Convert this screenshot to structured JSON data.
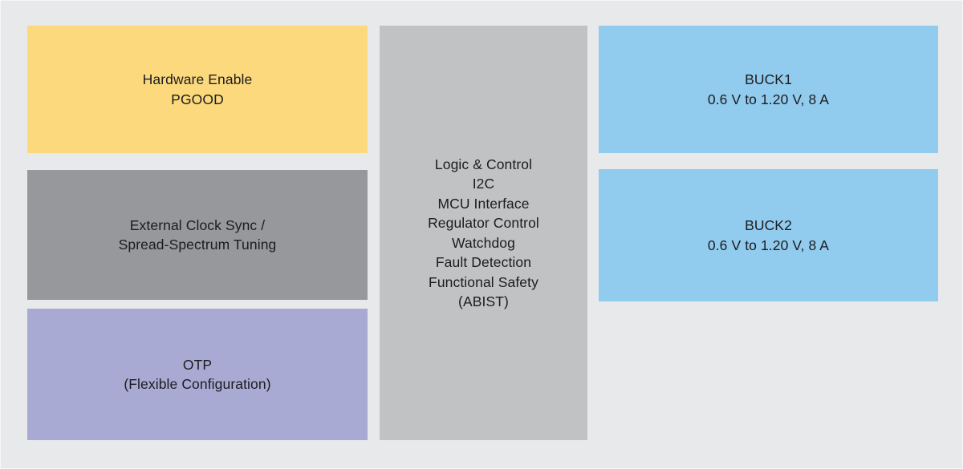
{
  "page": {
    "background_color": "#e8e9eb",
    "text_color": "#1c1c1e"
  },
  "blocks": {
    "hardware_enable": {
      "color": "#fcd97c",
      "lines": [
        "Hardware Enable",
        "PGOOD"
      ]
    },
    "external_clock": {
      "color": "#97989b",
      "lines": [
        "External Clock Sync /",
        "Spread-Spectrum Tuning"
      ]
    },
    "otp": {
      "color": "#a8aad4",
      "lines": [
        "OTP",
        "(Flexible Configuration)"
      ]
    },
    "logic_control": {
      "color": "#c1c2c4",
      "lines": [
        "Logic & Control",
        "I2C",
        "MCU Interface",
        "Regulator Control",
        "Watchdog",
        "Fault Detection",
        "Functional Safety",
        "(ABIST)"
      ]
    },
    "buck1": {
      "color": "#91cbee",
      "lines": [
        "BUCK1",
        "0.6 V to 1.20 V, 8 A"
      ]
    },
    "buck2": {
      "color": "#91cbee",
      "lines": [
        "BUCK2",
        "0.6 V to 1.20 V, 8 A"
      ]
    }
  }
}
